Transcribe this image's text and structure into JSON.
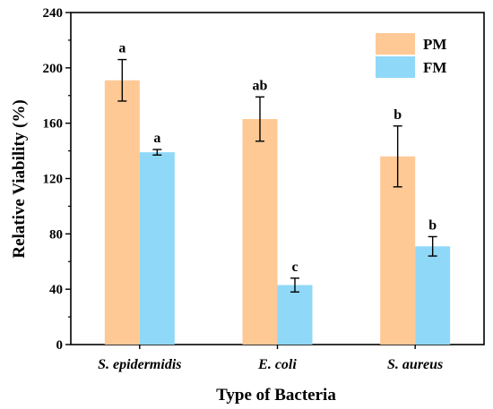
{
  "chart_data": {
    "type": "bar",
    "xlabel": "Type of Bacteria",
    "ylabel": "Relative Viability (%)",
    "ylim": [
      0,
      240
    ],
    "yticks": [
      0,
      40,
      80,
      120,
      160,
      200,
      240
    ],
    "categories": [
      "S. epidermidis",
      "E. coli",
      "S. aureus"
    ],
    "legend": {
      "position": "top-right"
    },
    "series": [
      {
        "name": "PM",
        "color": "#FFC996",
        "values": [
          191,
          163,
          136
        ],
        "errors": [
          15,
          16,
          22
        ],
        "significance": [
          "a",
          "ab",
          "b"
        ]
      },
      {
        "name": "FM",
        "color": "#8FD8F8",
        "values": [
          139,
          43,
          71
        ],
        "errors": [
          2,
          5,
          7
        ],
        "significance": [
          "a",
          "c",
          "b"
        ]
      }
    ]
  }
}
